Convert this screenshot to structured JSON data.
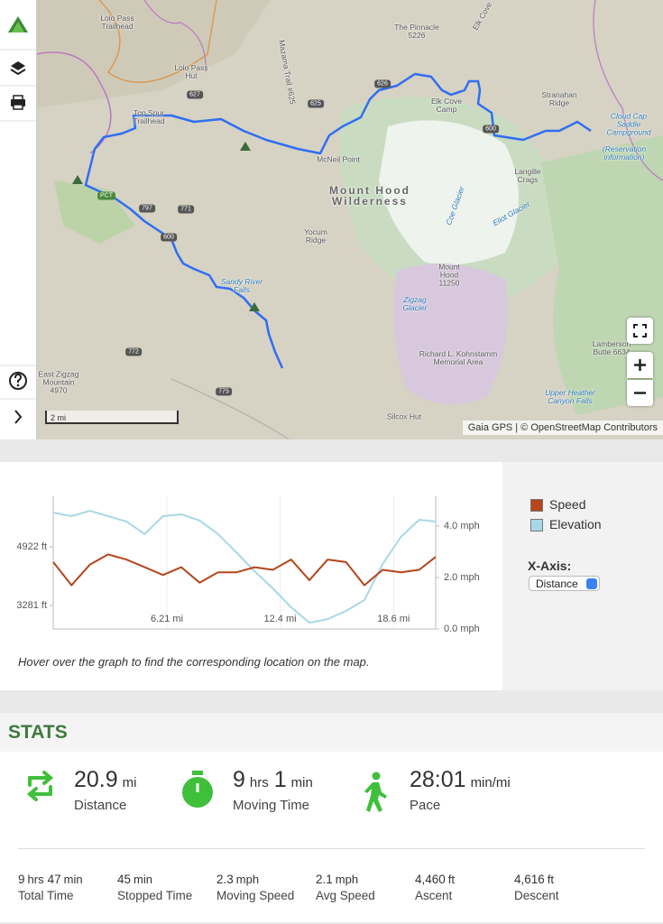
{
  "map": {
    "labels": [
      "Lolo Pass Trailhead",
      "Lolo Pass Hut",
      "Top Spur Trailhead",
      "Mazama Trail #625",
      "McNeil Point",
      "Mount Hood Wilderness",
      "Yocum Ridge",
      "Sandy River Falls",
      "Mount Hood 11250",
      "Zigzag Glacier",
      "Coe Glacier",
      "Eliot Glacier",
      "Langille Crags",
      "Elk Cove Camp",
      "Elk Cove",
      "The Pinnacle 5226",
      "Stranahan Ridge",
      "Cloud Cap Saddle Campground",
      "(Reservation information)",
      "Richard L. Kohnstamm Memorial Area",
      "Silcox Hut",
      "Upper Heather Canyon Falls",
      "Lamberson Butte 6634",
      "East Zigzag Mountain 4970"
    ],
    "shields": [
      "626",
      "625",
      "627",
      "600",
      "797",
      "771",
      "600",
      "772",
      "775",
      "PCT"
    ],
    "scale": "2 mi",
    "attribution": "Gaia GPS | © OpenStreetMap Contributors"
  },
  "chart_data": {
    "type": "line",
    "x": [
      0,
      1,
      2,
      3,
      4,
      5,
      6,
      7,
      8,
      9,
      10,
      11,
      12,
      13,
      14,
      15,
      16,
      17,
      18,
      19,
      20,
      20.9
    ],
    "series": [
      {
        "name": "Speed",
        "color": "#b5451b",
        "axis": "y2",
        "values": [
          2.6,
          1.7,
          2.5,
          2.9,
          2.7,
          2.4,
          2.1,
          2.4,
          1.8,
          2.2,
          2.2,
          2.4,
          2.3,
          2.7,
          1.9,
          2.7,
          2.6,
          1.7,
          2.3,
          2.2,
          2.3,
          2.8
        ]
      },
      {
        "name": "Elevation",
        "color": "#a8d8e8",
        "values": [
          5880,
          5780,
          5930,
          5780,
          5630,
          5280,
          5780,
          5830,
          5660,
          5280,
          4770,
          4240,
          3760,
          3230,
          2800,
          2900,
          3130,
          3430,
          4440,
          5200,
          5680,
          5630
        ]
      }
    ],
    "xlim": [
      0,
      20.9
    ],
    "xticks": [
      {
        "value": 6.21,
        "label": "6.21 mi"
      },
      {
        "value": 12.4,
        "label": "12.4 mi"
      },
      {
        "value": 18.6,
        "label": "18.6 mi"
      }
    ],
    "ylim": [
      2625,
      6336
    ],
    "yticks": [
      {
        "value": 4922,
        "label": "4922 ft"
      },
      {
        "value": 3281,
        "label": "3281 ft"
      }
    ],
    "y2lim": [
      0,
      5.16
    ],
    "y2ticks": [
      {
        "value": 4,
        "label": "4.0 mph"
      },
      {
        "value": 2,
        "label": "2.0 mph"
      },
      {
        "value": 0,
        "label": "0.0 mph"
      }
    ],
    "xgrid": true,
    "xaxis_control": {
      "label": "X-Axis:",
      "selected": "Distance"
    },
    "hint": "Hover over the graph to find the corresponding location on the map."
  },
  "stats": {
    "title": "STATS",
    "primary": [
      {
        "parts": [
          [
            "20.9",
            "mi"
          ]
        ],
        "label": "Distance"
      },
      {
        "parts": [
          [
            "9",
            "hrs"
          ],
          [
            "1",
            "min"
          ]
        ],
        "label": "Moving Time"
      },
      {
        "parts": [
          [
            "28:01",
            "min/mi"
          ]
        ],
        "label": "Pace"
      }
    ],
    "secondary": [
      {
        "parts": [
          [
            "9",
            "hrs"
          ],
          [
            "47",
            "min"
          ]
        ],
        "label": "Total Time"
      },
      {
        "parts": [
          [
            "45",
            "min"
          ]
        ],
        "label": "Stopped Time"
      },
      {
        "parts": [
          [
            "2.3",
            "mph"
          ]
        ],
        "label": "Moving Speed"
      },
      {
        "parts": [
          [
            "2.1",
            "mph"
          ]
        ],
        "label": "Avg Speed"
      },
      {
        "parts": [
          [
            "4,460",
            "ft"
          ]
        ],
        "label": "Ascent"
      },
      {
        "parts": [
          [
            "4,616",
            "ft"
          ]
        ],
        "label": "Descent"
      }
    ]
  }
}
